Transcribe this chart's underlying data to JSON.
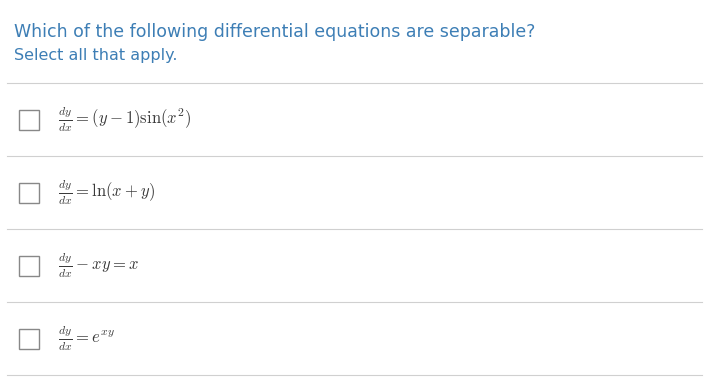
{
  "title": "Which of the following differential equations are separable?",
  "subtitle": "Select all that apply.",
  "title_color": "#3d7eb5",
  "subtitle_color": "#3d7eb5",
  "bg_color": "#ffffff",
  "equations": [
    "\\frac{dy}{dx} = (y-1)\\sin(x^2)",
    "\\frac{dy}{dx} = \\ln(x+y)",
    "\\frac{dy}{dx} - xy = x",
    "\\frac{dy}{dx} = e^{xy}"
  ],
  "line_color": "#d0d0d0",
  "checkbox_color": "#888888",
  "eq_color": "#3a3a3a",
  "figsize": [
    7.09,
    3.78
  ],
  "dpi": 100,
  "title_fontsize": 12.5,
  "subtitle_fontsize": 11.5,
  "eq_fontsize": 12
}
